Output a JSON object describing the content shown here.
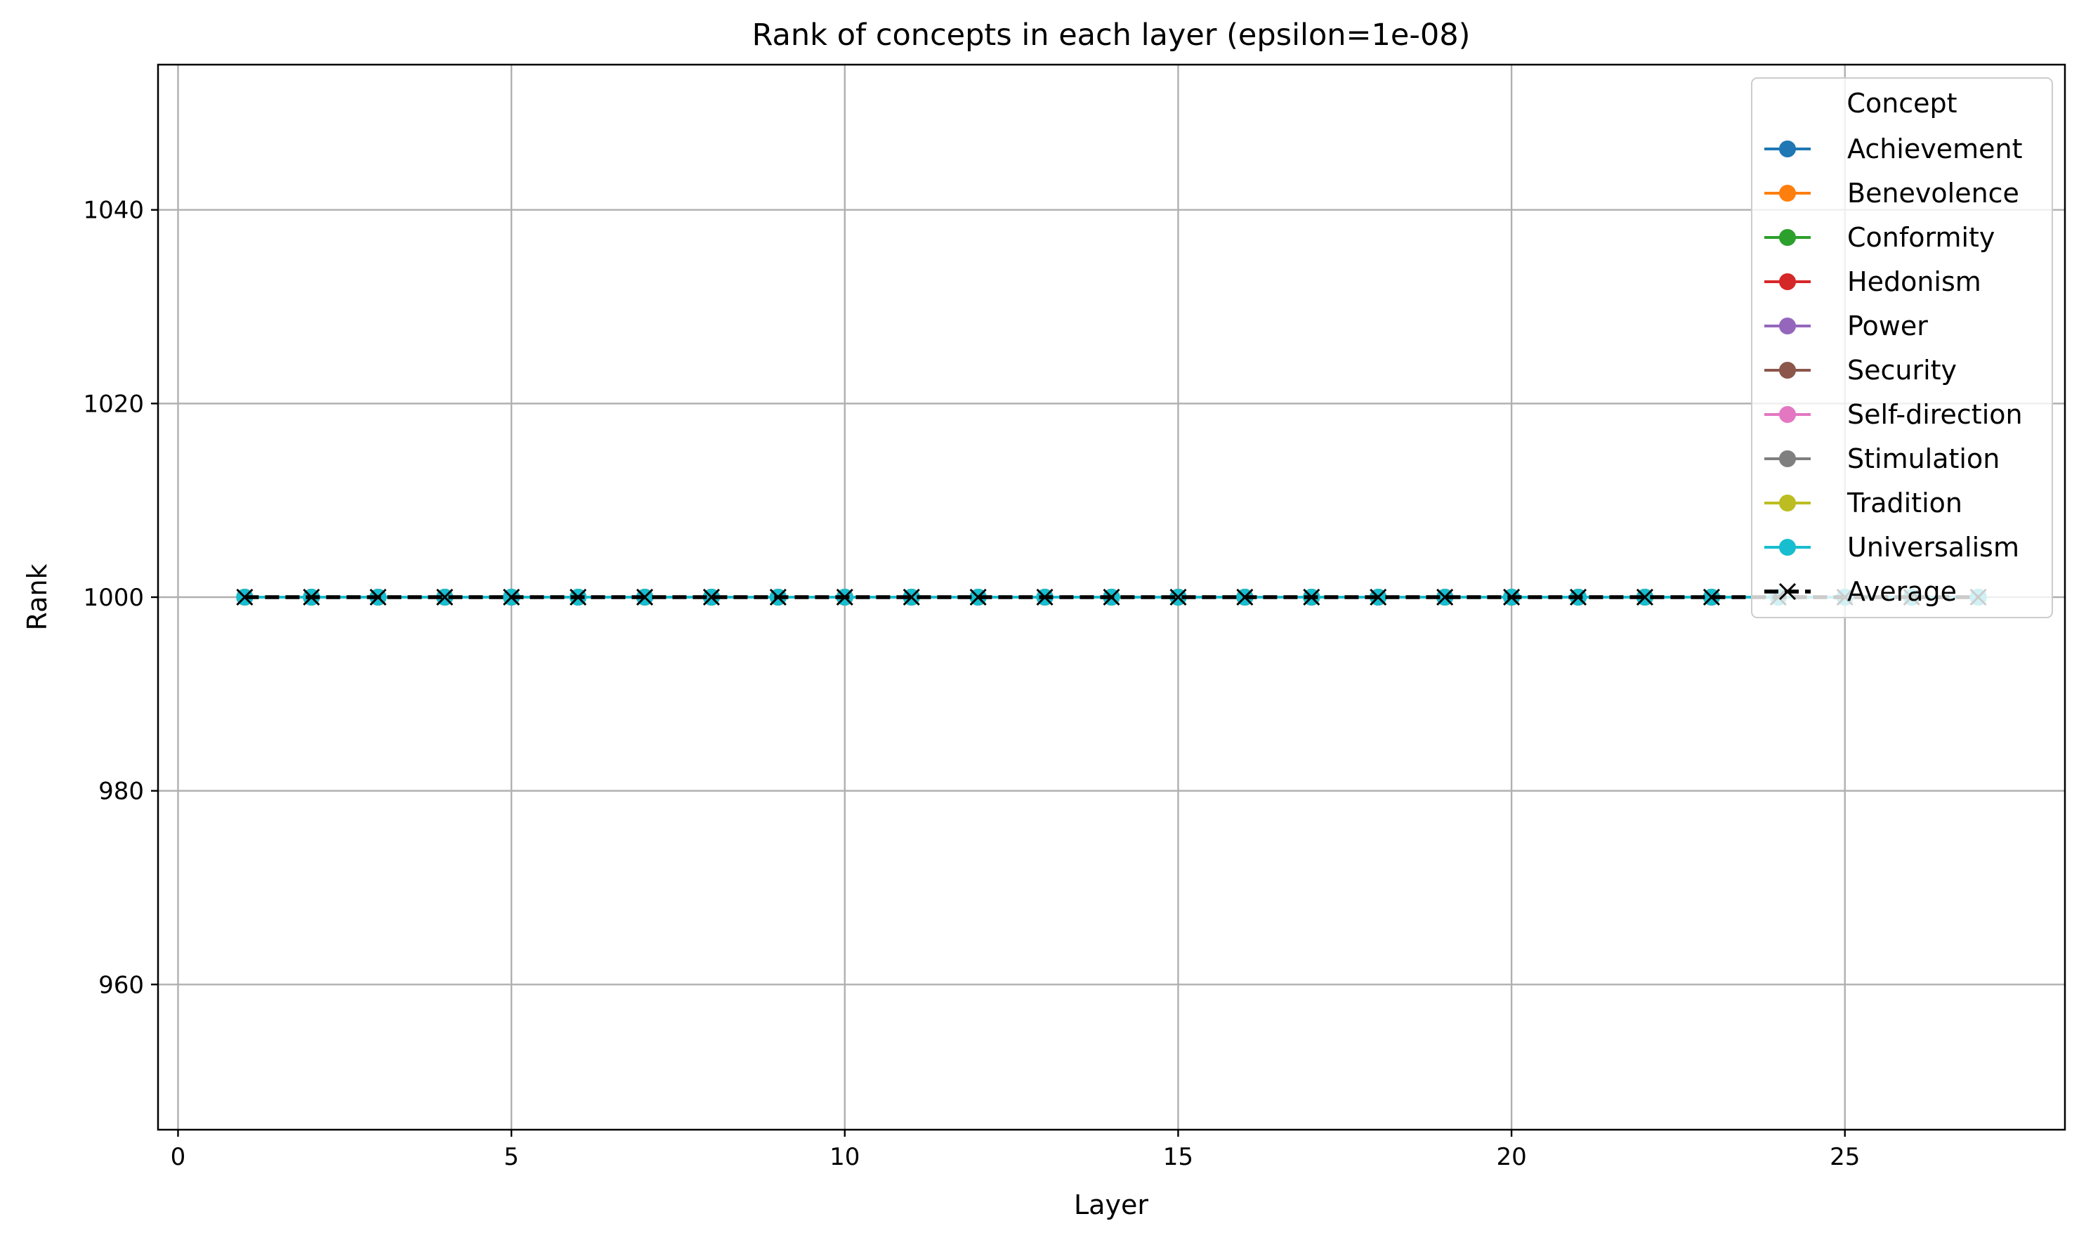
{
  "chart_data": {
    "type": "line",
    "title": "Rank of concepts in each layer (epsilon=1e-08)",
    "xlabel": "Layer",
    "ylabel": "Rank",
    "xlim": [
      -0.3,
      28.3
    ],
    "ylim": [
      945,
      1055
    ],
    "xticks": [
      0,
      5,
      10,
      15,
      20,
      25
    ],
    "yticks": [
      960,
      980,
      1000,
      1020,
      1040
    ],
    "grid": true,
    "legend": {
      "title": "Concept",
      "placement": "top-right"
    },
    "x": [
      1,
      2,
      3,
      4,
      5,
      6,
      7,
      8,
      9,
      10,
      11,
      12,
      13,
      14,
      15,
      16,
      17,
      18,
      19,
      20,
      21,
      22,
      23,
      24,
      25,
      26,
      27
    ],
    "series": [
      {
        "name": "Achievement",
        "color": "#1f77b4",
        "marker": "circle",
        "values": [
          1000,
          1000,
          1000,
          1000,
          1000,
          1000,
          1000,
          1000,
          1000,
          1000,
          1000,
          1000,
          1000,
          1000,
          1000,
          1000,
          1000,
          1000,
          1000,
          1000,
          1000,
          1000,
          1000,
          1000,
          1000,
          1000,
          1000
        ]
      },
      {
        "name": "Benevolence",
        "color": "#ff7f0e",
        "marker": "circle",
        "values": [
          1000,
          1000,
          1000,
          1000,
          1000,
          1000,
          1000,
          1000,
          1000,
          1000,
          1000,
          1000,
          1000,
          1000,
          1000,
          1000,
          1000,
          1000,
          1000,
          1000,
          1000,
          1000,
          1000,
          1000,
          1000,
          1000,
          1000
        ]
      },
      {
        "name": "Conformity",
        "color": "#2ca02c",
        "marker": "circle",
        "values": [
          1000,
          1000,
          1000,
          1000,
          1000,
          1000,
          1000,
          1000,
          1000,
          1000,
          1000,
          1000,
          1000,
          1000,
          1000,
          1000,
          1000,
          1000,
          1000,
          1000,
          1000,
          1000,
          1000,
          1000,
          1000,
          1000,
          1000
        ]
      },
      {
        "name": "Hedonism",
        "color": "#d62728",
        "marker": "circle",
        "values": [
          1000,
          1000,
          1000,
          1000,
          1000,
          1000,
          1000,
          1000,
          1000,
          1000,
          1000,
          1000,
          1000,
          1000,
          1000,
          1000,
          1000,
          1000,
          1000,
          1000,
          1000,
          1000,
          1000,
          1000,
          1000,
          1000,
          1000
        ]
      },
      {
        "name": "Power",
        "color": "#9467bd",
        "marker": "circle",
        "values": [
          1000,
          1000,
          1000,
          1000,
          1000,
          1000,
          1000,
          1000,
          1000,
          1000,
          1000,
          1000,
          1000,
          1000,
          1000,
          1000,
          1000,
          1000,
          1000,
          1000,
          1000,
          1000,
          1000,
          1000,
          1000,
          1000,
          1000
        ]
      },
      {
        "name": "Security",
        "color": "#8c564b",
        "marker": "circle",
        "values": [
          1000,
          1000,
          1000,
          1000,
          1000,
          1000,
          1000,
          1000,
          1000,
          1000,
          1000,
          1000,
          1000,
          1000,
          1000,
          1000,
          1000,
          1000,
          1000,
          1000,
          1000,
          1000,
          1000,
          1000,
          1000,
          1000,
          1000
        ]
      },
      {
        "name": "Self-direction",
        "color": "#e377c2",
        "marker": "circle",
        "values": [
          1000,
          1000,
          1000,
          1000,
          1000,
          1000,
          1000,
          1000,
          1000,
          1000,
          1000,
          1000,
          1000,
          1000,
          1000,
          1000,
          1000,
          1000,
          1000,
          1000,
          1000,
          1000,
          1000,
          1000,
          1000,
          1000,
          1000
        ]
      },
      {
        "name": "Stimulation",
        "color": "#7f7f7f",
        "marker": "circle",
        "values": [
          1000,
          1000,
          1000,
          1000,
          1000,
          1000,
          1000,
          1000,
          1000,
          1000,
          1000,
          1000,
          1000,
          1000,
          1000,
          1000,
          1000,
          1000,
          1000,
          1000,
          1000,
          1000,
          1000,
          1000,
          1000,
          1000,
          1000
        ]
      },
      {
        "name": "Tradition",
        "color": "#bcbd22",
        "marker": "circle",
        "values": [
          1000,
          1000,
          1000,
          1000,
          1000,
          1000,
          1000,
          1000,
          1000,
          1000,
          1000,
          1000,
          1000,
          1000,
          1000,
          1000,
          1000,
          1000,
          1000,
          1000,
          1000,
          1000,
          1000,
          1000,
          1000,
          1000,
          1000
        ]
      },
      {
        "name": "Universalism",
        "color": "#17becf",
        "marker": "circle",
        "values": [
          1000,
          1000,
          1000,
          1000,
          1000,
          1000,
          1000,
          1000,
          1000,
          1000,
          1000,
          1000,
          1000,
          1000,
          1000,
          1000,
          1000,
          1000,
          1000,
          1000,
          1000,
          1000,
          1000,
          1000,
          1000,
          1000,
          1000
        ]
      },
      {
        "name": "Average",
        "color": "#000000",
        "marker": "x",
        "linestyle": "dashed",
        "values": [
          1000,
          1000,
          1000,
          1000,
          1000,
          1000,
          1000,
          1000,
          1000,
          1000,
          1000,
          1000,
          1000,
          1000,
          1000,
          1000,
          1000,
          1000,
          1000,
          1000,
          1000,
          1000,
          1000,
          1000,
          1000,
          1000,
          1000
        ]
      }
    ]
  }
}
